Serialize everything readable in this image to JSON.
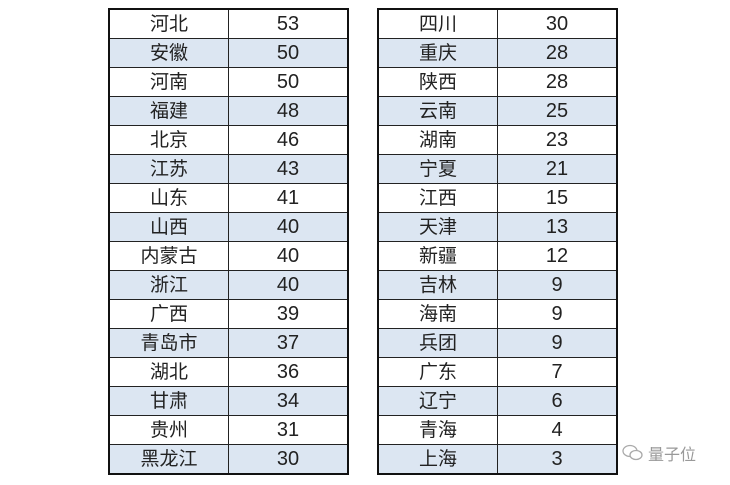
{
  "left_table": [
    [
      "河北",
      "53"
    ],
    [
      "安徽",
      "50"
    ],
    [
      "河南",
      "50"
    ],
    [
      "福建",
      "48"
    ],
    [
      "北京",
      "46"
    ],
    [
      "江苏",
      "43"
    ],
    [
      "山东",
      "41"
    ],
    [
      "山西",
      "40"
    ],
    [
      "内蒙古",
      "40"
    ],
    [
      "浙江",
      "40"
    ],
    [
      "广西",
      "39"
    ],
    [
      "青岛市",
      "37"
    ],
    [
      "湖北",
      "36"
    ],
    [
      "甘肃",
      "34"
    ],
    [
      "贵州",
      "31"
    ],
    [
      "黑龙江",
      "30"
    ]
  ],
  "right_table": [
    [
      "四川",
      "30"
    ],
    [
      "重庆",
      "28"
    ],
    [
      "陕西",
      "28"
    ],
    [
      "云南",
      "25"
    ],
    [
      "湖南",
      "23"
    ],
    [
      "宁夏",
      "21"
    ],
    [
      "江西",
      "15"
    ],
    [
      "天津",
      "13"
    ],
    [
      "新疆",
      "12"
    ],
    [
      "吉林",
      "9"
    ],
    [
      "海南",
      "9"
    ],
    [
      "兵团",
      "9"
    ],
    [
      "广东",
      "7"
    ],
    [
      "辽宁",
      "6"
    ],
    [
      "青海",
      "4"
    ],
    [
      "上海",
      "3"
    ]
  ],
  "watermark": {
    "icon": "wechat-icon",
    "text": "量子位"
  },
  "colors": {
    "stripe": "#dce6f2",
    "border": "#111111"
  }
}
